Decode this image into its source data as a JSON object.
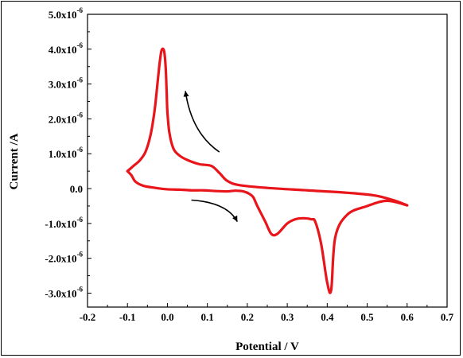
{
  "chart_data": {
    "type": "line",
    "xlabel": "Potential / V",
    "ylabel": "Current /A",
    "xlim": [
      -0.2,
      0.7
    ],
    "ylim": [
      -3.4e-06,
      5e-06
    ],
    "x_ticks": [
      -0.2,
      -0.1,
      0.0,
      0.1,
      0.2,
      0.3,
      0.4,
      0.5,
      0.6,
      0.7
    ],
    "x_tick_labels": [
      "-0.2",
      "-0.1",
      "0.0",
      "0.1",
      "0.2",
      "0.3",
      "0.4",
      "0.5",
      "0.6",
      "0.7"
    ],
    "y_ticks": [
      {
        "value": 5e-06,
        "mantissa": "5.0x10",
        "exp": "-6"
      },
      {
        "value": 4e-06,
        "mantissa": "4.0x10",
        "exp": "-6"
      },
      {
        "value": 3e-06,
        "mantissa": "3.0x10",
        "exp": "-6"
      },
      {
        "value": 2e-06,
        "mantissa": "2.0x10",
        "exp": "-6"
      },
      {
        "value": 1e-06,
        "mantissa": "1.0x10",
        "exp": "-6"
      },
      {
        "value": 0.0,
        "mantissa": "0.0",
        "exp": ""
      },
      {
        "value": -1e-06,
        "mantissa": "-1.0x10",
        "exp": "-6"
      },
      {
        "value": -2e-06,
        "mantissa": "-2.0x10",
        "exp": "-6"
      },
      {
        "value": -3e-06,
        "mantissa": "-3.0x10",
        "exp": "-6"
      }
    ],
    "grid": false,
    "line_color": "#e8151b",
    "series": [
      {
        "x": [
          0.6,
          0.55,
          0.5,
          0.45,
          0.42,
          0.41,
          0.4,
          0.385,
          0.37,
          0.36,
          0.34,
          0.32,
          0.3,
          0.275,
          0.26,
          0.245,
          0.225,
          0.215,
          0.205,
          0.19,
          0.17,
          0.15,
          0.12,
          0.09,
          0.06,
          0.03,
          0.0,
          -0.03,
          -0.06,
          -0.08,
          -0.09,
          -0.1
        ],
        "y": [
          -4.8e-07,
          -3.5e-07,
          -5e-07,
          -7.5e-07,
          -1.4e-06,
          -2.9e-06,
          -2.7e-06,
          -1.6e-06,
          -9.5e-07,
          -8.8e-07,
          -8.5e-07,
          -8.8e-07,
          -1e-06,
          -1.3e-06,
          -1.3e-06,
          -9.5e-07,
          -5e-07,
          -2.5e-07,
          -1.5e-07,
          -8e-08,
          -6e-08,
          -8e-08,
          -7e-08,
          -5e-08,
          -5e-08,
          -3e-08,
          -2e-08,
          2e-08,
          8e-08,
          2e-07,
          3.8e-07,
          5e-07
        ]
      },
      {
        "x": [
          -0.1,
          -0.085,
          -0.07,
          -0.055,
          -0.042,
          -0.032,
          -0.025,
          -0.02,
          -0.015,
          -0.01,
          -0.007,
          -0.004,
          -0.002,
          0.0,
          0.005,
          0.015,
          0.03,
          0.05,
          0.08,
          0.11,
          0.13,
          0.15,
          0.18,
          0.25,
          0.35,
          0.45,
          0.52,
          0.57,
          0.6
        ],
        "y": [
          5e-07,
          6.5e-07,
          8e-07,
          1.05e-06,
          1.55e-06,
          2.25e-06,
          3e-06,
          3.55e-06,
          3.95e-06,
          4e-06,
          3.85e-06,
          3.4e-06,
          2.8e-06,
          2.2e-06,
          1.6e-06,
          1.15e-06,
          9.5e-07,
          8.2e-07,
          7e-07,
          6.5e-07,
          4.5e-07,
          2.2e-07,
          1e-07,
          2e-08,
          -5e-08,
          -1.2e-07,
          -2e-07,
          -3.5e-07,
          -4.8e-07
        ]
      }
    ],
    "arrows": [
      {
        "name": "anodic-sweep-arrow",
        "from": [
          0.13,
          1.05e-06
        ],
        "via": [
          0.06,
          1.6e-06
        ],
        "to": [
          0.045,
          2.8e-06
        ]
      },
      {
        "name": "cathodic-sweep-arrow",
        "from": [
          0.06,
          -3.3e-07
        ],
        "via": [
          0.15,
          -4e-07
        ],
        "to": [
          0.175,
          -9.5e-07
        ]
      }
    ]
  }
}
